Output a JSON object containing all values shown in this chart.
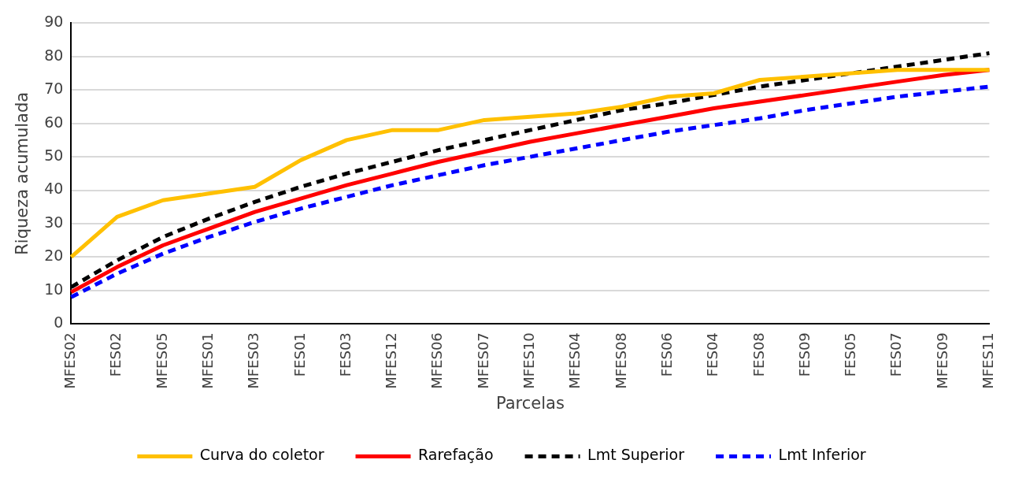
{
  "chart_data": {
    "type": "line",
    "xlabel": "Parcelas",
    "ylabel": "Riqueza acumulada",
    "categories": [
      "MFES02",
      "FES02",
      "MFES05",
      "MFES01",
      "MFES03",
      "FES01",
      "FES03",
      "MFES12",
      "MFES06",
      "MFES07",
      "MFES10",
      "MFES04",
      "MFES08",
      "FES06",
      "FES04",
      "FES08",
      "FES09",
      "FES05",
      "FES07",
      "MFES09",
      "MFES11"
    ],
    "ylim": [
      0,
      90
    ],
    "yticks": [
      0,
      10,
      20,
      30,
      40,
      50,
      60,
      70,
      80,
      90
    ],
    "grid": "y",
    "legend": "bottom",
    "marker": "none",
    "series": [
      {
        "name": "Curva do coletor",
        "color": "#ffc000",
        "line_style": "solid",
        "values": [
          20,
          32,
          37,
          39,
          41,
          49,
          55,
          58,
          58,
          61,
          62,
          63,
          65,
          68,
          69,
          73,
          74,
          75,
          76,
          76,
          76
        ]
      },
      {
        "name": "Rarefação",
        "color": "#ff0000",
        "line_style": "solid",
        "values": [
          9.5,
          17,
          23.5,
          28.5,
          33.5,
          37.5,
          41.5,
          45,
          48.5,
          51.5,
          54.5,
          57,
          59.5,
          62,
          64.5,
          66.5,
          68.5,
          70.5,
          72.5,
          74.5,
          76
        ]
      },
      {
        "name": "Lmt Superior",
        "color": "#000000",
        "line_style": "dashed",
        "values": [
          11,
          19,
          26,
          31.5,
          36.5,
          41,
          45,
          48.5,
          52,
          55,
          58,
          61,
          64,
          66,
          68.5,
          71,
          73,
          75,
          77,
          79,
          81
        ]
      },
      {
        "name": "Lmt Inferior",
        "color": "#0000ff",
        "line_style": "dashed",
        "values": [
          8,
          15,
          21,
          26,
          30.5,
          34.5,
          38,
          41.5,
          44.5,
          47.5,
          50,
          52.5,
          55,
          57.5,
          59.5,
          61.5,
          64,
          66,
          68,
          69.5,
          71
        ]
      }
    ]
  }
}
